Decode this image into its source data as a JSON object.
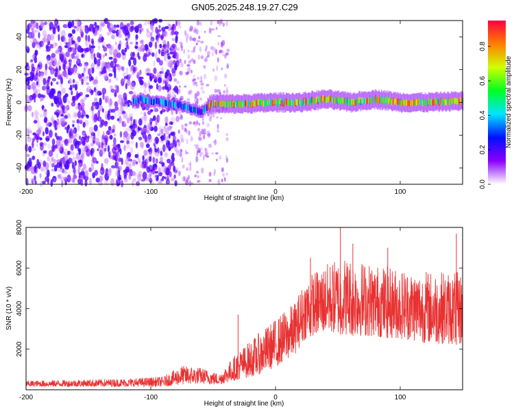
{
  "title": "GN05.2025.248.19.27.C29",
  "chart_data": [
    {
      "type": "heatmap",
      "name": "spectrogram",
      "xlabel": "Height of straight line (km)",
      "ylabel": "Frequency (Hz)",
      "xlim": [
        -200,
        150
      ],
      "ylim": [
        -50,
        50
      ],
      "x_ticks": [
        -200,
        -100,
        0,
        100
      ],
      "y_ticks": [
        -40,
        -20,
        0,
        20,
        40
      ],
      "noise_region_x": [
        -200,
        -78
      ],
      "sparse_noise_region_x": [
        -78,
        -38
      ],
      "signal_track": [
        {
          "x": -110,
          "y": 2
        },
        {
          "x": -90,
          "y": 0
        },
        {
          "x": -75,
          "y": -2
        },
        {
          "x": -60,
          "y": -6
        },
        {
          "x": -52,
          "y": -1
        },
        {
          "x": -30,
          "y": -1
        },
        {
          "x": 0,
          "y": 0
        },
        {
          "x": 20,
          "y": 0
        },
        {
          "x": 40,
          "y": 2
        },
        {
          "x": 60,
          "y": 0
        },
        {
          "x": 80,
          "y": 2
        },
        {
          "x": 100,
          "y": 0
        },
        {
          "x": 120,
          "y": 0
        },
        {
          "x": 150,
          "y": 1
        }
      ],
      "colorbar": {
        "label": "Normalized spectral amplitude",
        "range": [
          0,
          0.95
        ],
        "ticks": [
          "0.0",
          "0.2",
          "0.4",
          "0.6",
          "0.8"
        ],
        "colors": [
          "#ffffff",
          "#8a00ff",
          "#0010ff",
          "#00e5ff",
          "#00ff20",
          "#d0ff00",
          "#ff7f00",
          "#ff0040"
        ]
      }
    },
    {
      "type": "line",
      "name": "snr",
      "xlabel": "Height of straight line (km)",
      "ylabel": "SNR (10 * v/v)",
      "xlim": [
        -200,
        150
      ],
      "ylim": [
        0,
        8000
      ],
      "x_ticks": [
        -200,
        -100,
        0,
        100
      ],
      "y_ticks": [
        2000,
        4000,
        6000,
        8000
      ],
      "color": "#e83232",
      "envelope": [
        {
          "x": -200,
          "low": 150,
          "high": 450
        },
        {
          "x": -120,
          "low": 150,
          "high": 550
        },
        {
          "x": -90,
          "low": 150,
          "high": 650
        },
        {
          "x": -75,
          "low": 250,
          "high": 1200
        },
        {
          "x": -60,
          "low": 300,
          "high": 1100
        },
        {
          "x": -45,
          "low": 250,
          "high": 800
        },
        {
          "x": -30,
          "low": 500,
          "high": 1900
        },
        {
          "x": -15,
          "low": 700,
          "high": 2700
        },
        {
          "x": 0,
          "low": 1100,
          "high": 3500
        },
        {
          "x": 15,
          "low": 1700,
          "high": 4300
        },
        {
          "x": 25,
          "low": 2600,
          "high": 5600
        },
        {
          "x": 40,
          "low": 2800,
          "high": 6200
        },
        {
          "x": 55,
          "low": 2700,
          "high": 6600
        },
        {
          "x": 80,
          "low": 2600,
          "high": 6200
        },
        {
          "x": 100,
          "low": 2500,
          "high": 6000
        },
        {
          "x": 120,
          "low": 2300,
          "high": 5900
        },
        {
          "x": 150,
          "low": 2200,
          "high": 5800
        }
      ],
      "spikes": [
        {
          "x": -30,
          "y": 3700
        },
        {
          "x": 28,
          "y": 6500
        },
        {
          "x": 52,
          "y": 8000
        },
        {
          "x": 62,
          "y": 7200
        },
        {
          "x": 90,
          "y": 7000
        },
        {
          "x": 145,
          "y": 7700
        }
      ]
    }
  ]
}
